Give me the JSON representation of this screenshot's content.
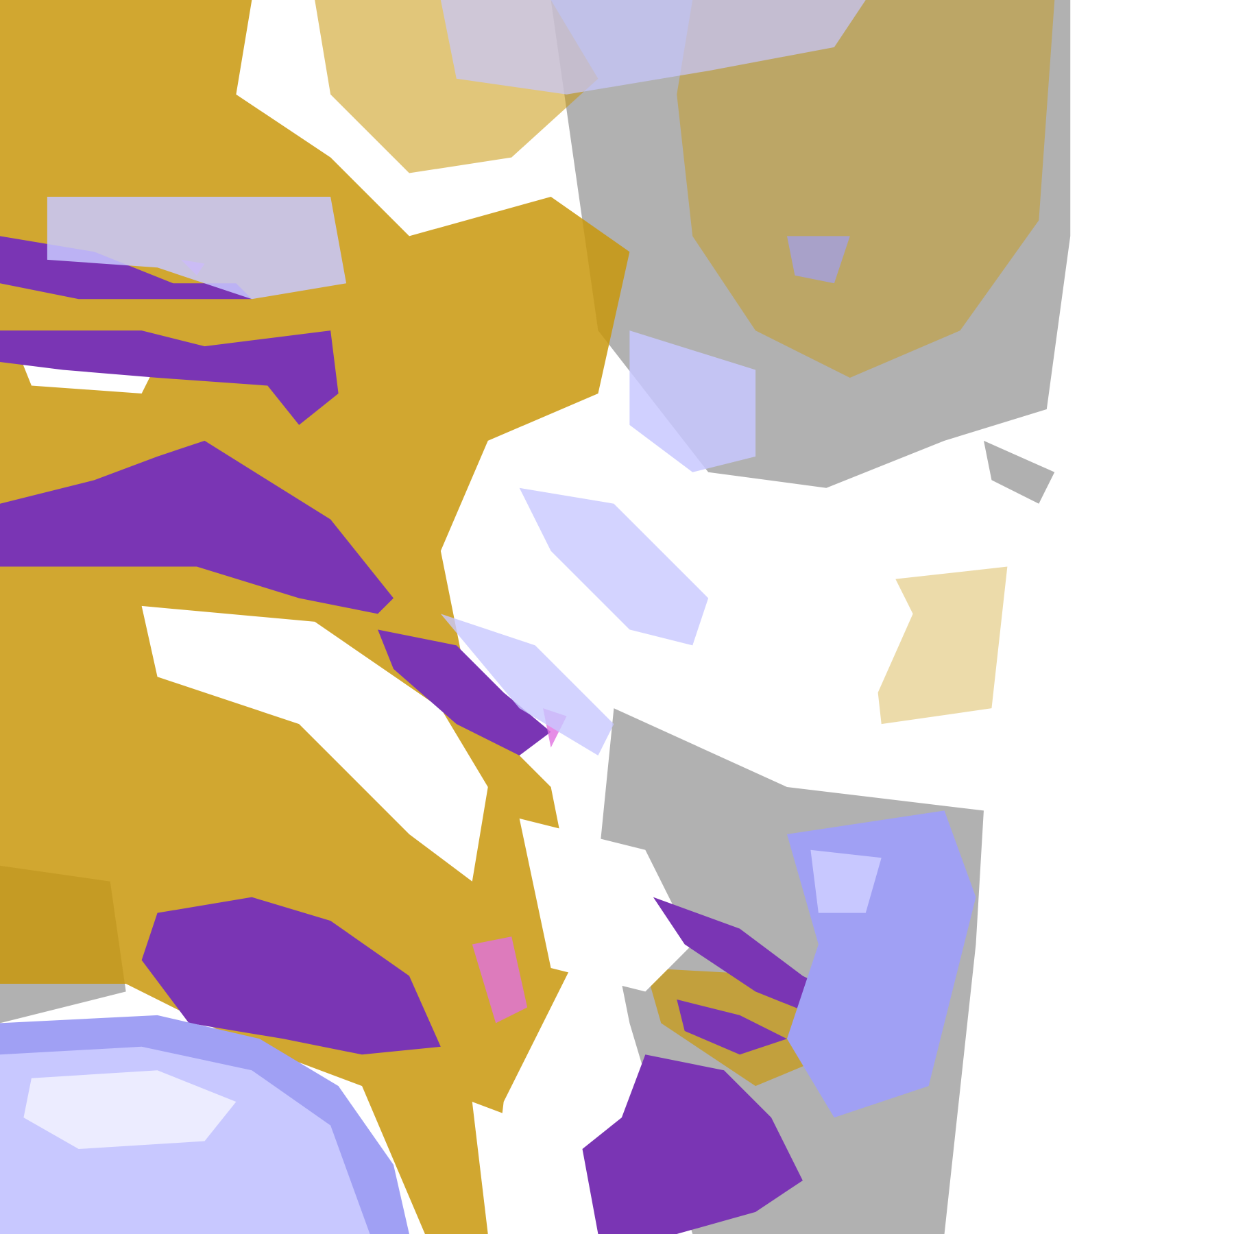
{
  "image": {
    "kind": "classified satellite cloud imagery",
    "background": "#ffffff",
    "palette": {
      "gold": "#c9980c",
      "purple": "#7a35b4",
      "pink": "#e070e0",
      "lavender_light": "#ececff",
      "lavender": "#c8c8ff",
      "periwinkle": "#a0a0f4",
      "gray_light": "#b4b4b4",
      "gray": "#909090"
    }
  }
}
